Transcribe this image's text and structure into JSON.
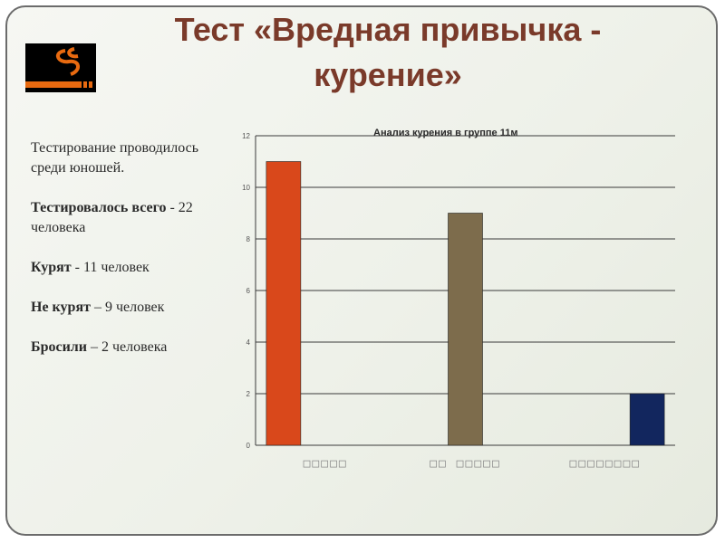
{
  "slide": {
    "title_line1": "Тест «Вредная привычка -",
    "title_line2": "курение»"
  },
  "info": {
    "intro": "Тестирование проводилось среди юношей.",
    "total_label": "Тестировалось всего",
    "total_value": "- 22 человека",
    "smoke_label": "Курят",
    "smoke_value": "- 11 человек",
    "nonsmoke_label": "Не курят",
    "nonsmoke_value": "– 9 человек",
    "quit_label": "Бросили",
    "quit_value": "– 2 человека"
  },
  "icons": {
    "logo": "cigarette-smoke-icon"
  },
  "chart_data": {
    "type": "bar",
    "title": "Анализ курения в группе 11м",
    "categories": [
      "□□□□□",
      "□□ □□□□□",
      "□□□□□□□□"
    ],
    "values": [
      11,
      9,
      2
    ],
    "colors": [
      "#d9481b",
      "#7d6c4c",
      "#12265e"
    ],
    "ylim": [
      0,
      12
    ],
    "yticks": [
      0,
      2,
      4,
      6,
      8,
      10,
      12
    ],
    "grid": true,
    "legend": "none"
  }
}
